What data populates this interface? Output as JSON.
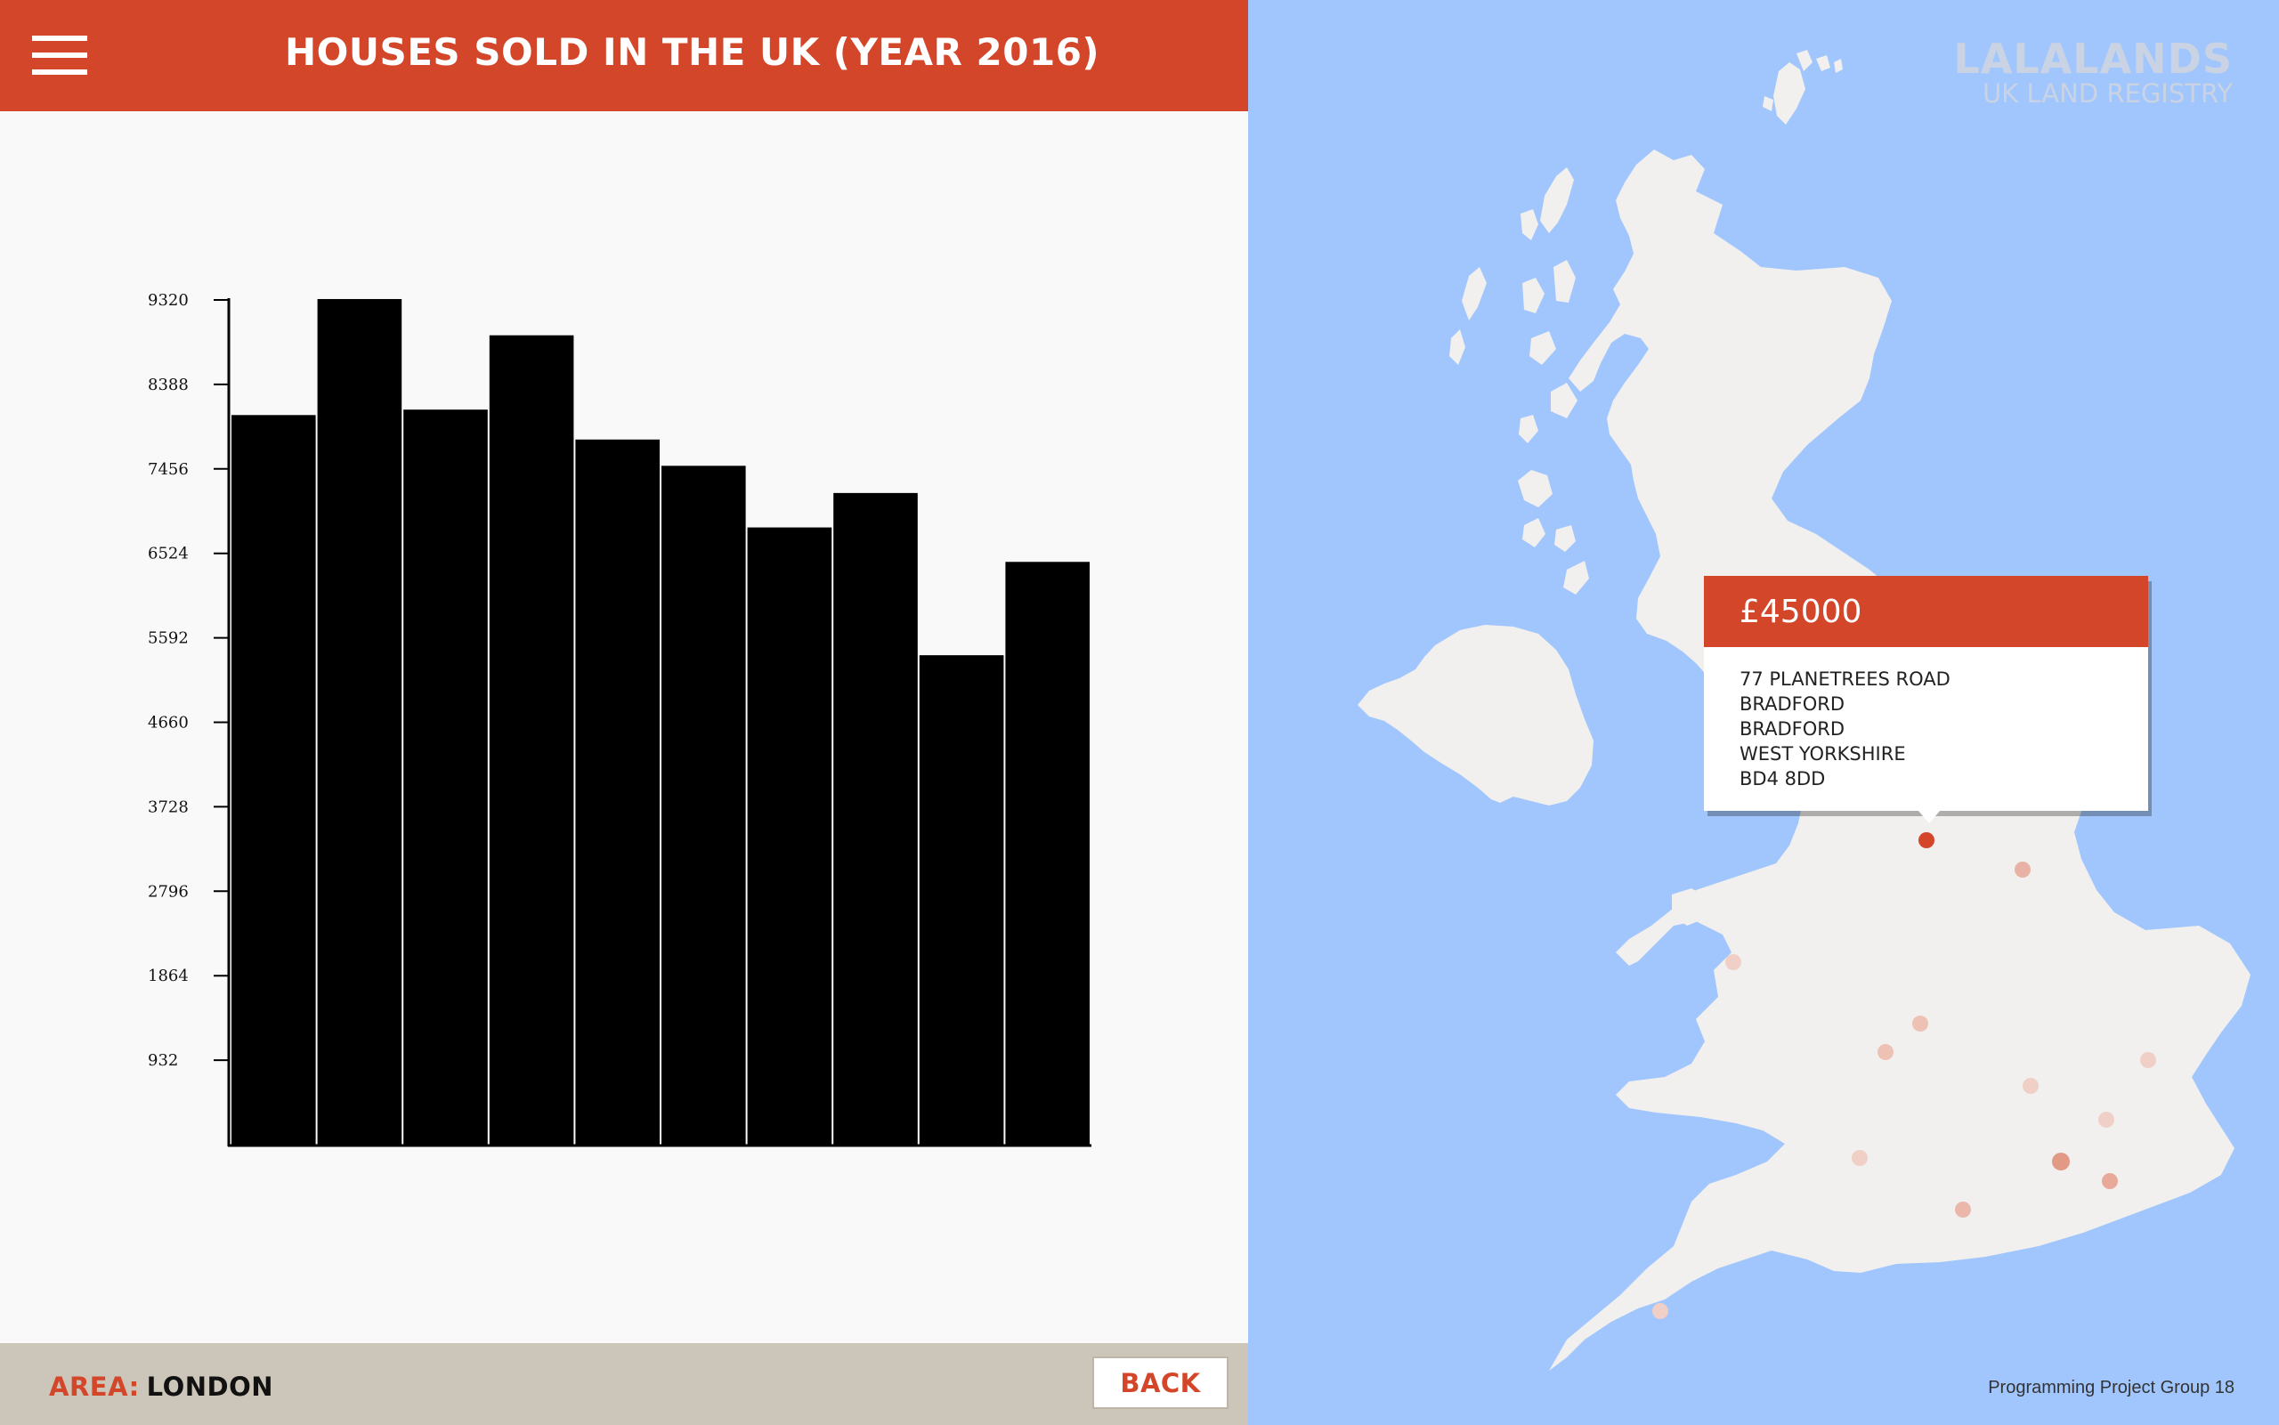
{
  "header": {
    "title": "HOUSES SOLD IN THE UK (YEAR 2016)",
    "menu_icon": "hamburger-menu-icon"
  },
  "colors": {
    "accent": "#d4462a",
    "map_water": "#a0c6fd",
    "map_land": "#f1f0ee",
    "footer": "#ccc5b9"
  },
  "chart_data": {
    "type": "bar",
    "title": "",
    "xlabel": "",
    "ylabel": "",
    "yticks": [
      932,
      1864,
      2796,
      3728,
      4660,
      5592,
      6524,
      7456,
      8388,
      9320
    ],
    "ylim": [
      0,
      9320
    ],
    "values": [
      8050,
      9330,
      8110,
      8930,
      7780,
      7490,
      6810,
      7190,
      5400,
      6430
    ],
    "bar_color": "#000000"
  },
  "footer": {
    "area_label": "AREA:",
    "area_value": "LONDON",
    "back_label": "BACK"
  },
  "map": {
    "brand_name": "LALALANDS",
    "brand_sub": "UK LAND REGISTRY",
    "credit": "Programming Project Group 18",
    "popup": {
      "price": "£45000",
      "address": [
        "77 PLANETREES ROAD",
        "BRADFORD",
        "BRADFORD",
        "WEST YORKSHIRE",
        "BD4 8DD"
      ]
    }
  }
}
